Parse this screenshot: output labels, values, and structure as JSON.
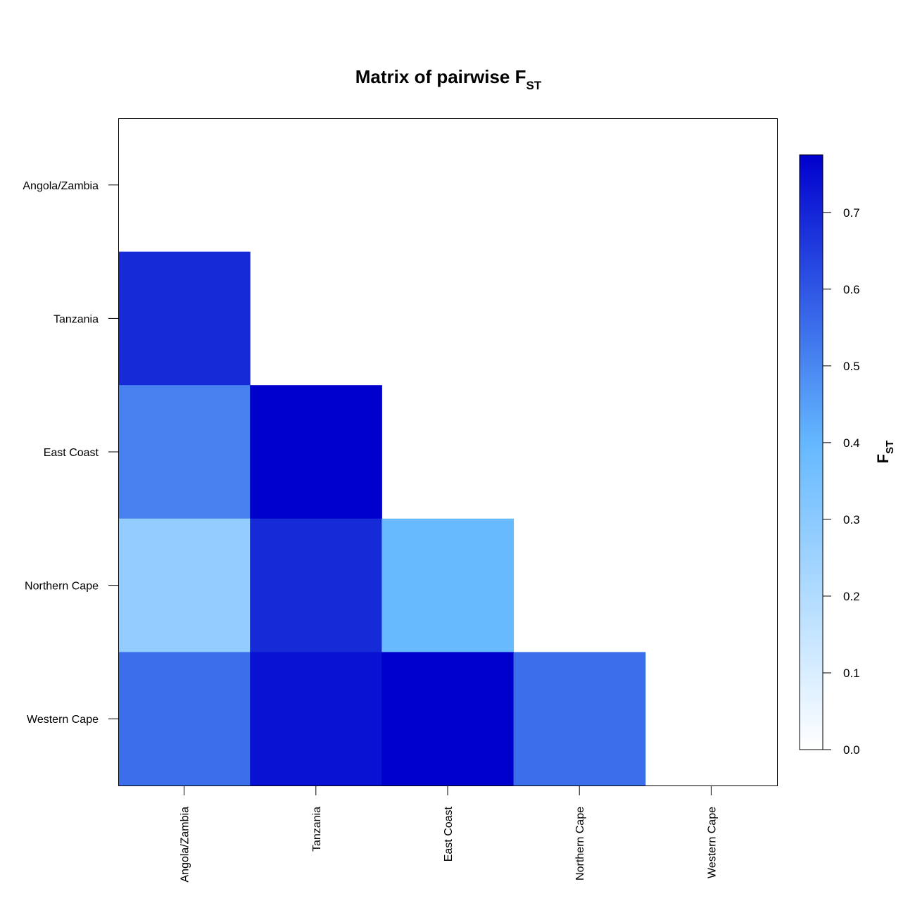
{
  "chart_data": {
    "type": "heatmap",
    "title_main": "Matrix of pairwise F",
    "title_sub": "ST",
    "rows": [
      "Angola/Zambia",
      "Tanzania",
      "East Coast",
      "Northern Cape",
      "Western Cape"
    ],
    "columns": [
      "Angola/Zambia",
      "Tanzania",
      "East Coast",
      "Northern Cape",
      "Western Cape"
    ],
    "values": [
      [
        null,
        null,
        null,
        null,
        null
      ],
      [
        0.69,
        null,
        null,
        null,
        null
      ],
      [
        0.51,
        0.78,
        null,
        null,
        null
      ],
      [
        0.28,
        0.69,
        0.39,
        null,
        null
      ],
      [
        0.55,
        0.74,
        0.78,
        0.55,
        null
      ]
    ],
    "colorbar": {
      "title_main": "F",
      "title_sub": "ST",
      "min": 0.0,
      "max": 0.775,
      "ticks": [
        0.0,
        0.1,
        0.2,
        0.3,
        0.4,
        0.5,
        0.6,
        0.7
      ],
      "tick_labels": [
        "0.0",
        "0.1",
        "0.2",
        "0.3",
        "0.4",
        "0.5",
        "0.6",
        "0.7"
      ],
      "colors": [
        "#ffffff",
        "#64b8ff",
        "#0000cd"
      ],
      "color_stops": [
        0.0,
        0.4,
        0.775
      ],
      "placement": "right"
    },
    "grid": false
  }
}
